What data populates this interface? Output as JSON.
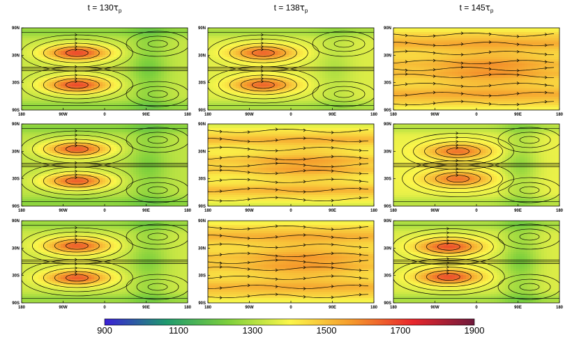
{
  "chart_data": {
    "type": "heatmap",
    "title": "",
    "columns": [
      {
        "t_prefix": "t = ",
        "t_value": "130",
        "t_symbol": "τ",
        "t_sub": "p"
      },
      {
        "t_prefix": "t = ",
        "t_value": "138",
        "t_symbol": "τ",
        "t_sub": "p"
      },
      {
        "t_prefix": "t = ",
        "t_value": "145",
        "t_symbol": "τ",
        "t_sub": "p"
      }
    ],
    "x_ticks": [
      "180",
      "90W",
      "0",
      "90E",
      "180"
    ],
    "x_tick_values": [
      -180,
      -90,
      0,
      90,
      180
    ],
    "y_ticks": [
      "90N",
      "30N",
      "30S",
      "90S"
    ],
    "y_tick_values": [
      90,
      30,
      -30,
      -90
    ],
    "xlim": [
      -180,
      180
    ],
    "ylim": [
      -90,
      90
    ],
    "colorbar": {
      "ticks": [
        "900",
        "1100",
        "1300",
        "1500",
        "1700",
        "1900"
      ],
      "range": [
        900,
        1900
      ],
      "colors": [
        "#3a1fd6",
        "#1f9a6e",
        "#7ccf3c",
        "#fbf64a",
        "#f59a2c",
        "#e8262c",
        "#6e1a3c"
      ]
    },
    "panels": [
      {
        "row": 1,
        "col": 1,
        "pattern": "gyres",
        "background": 1330,
        "gyre_peak": 1680,
        "gyre_center_lon": -60,
        "gyre_center_lat": 35,
        "trough": 1220
      },
      {
        "row": 1,
        "col": 2,
        "pattern": "gyres",
        "background": 1360,
        "gyre_peak": 1640,
        "gyre_center_lon": -60,
        "gyre_center_lat": 35,
        "trough": 1300
      },
      {
        "row": 1,
        "col": 3,
        "pattern": "bands",
        "background": 1480,
        "band_peak": 1540,
        "trough": 1400
      },
      {
        "row": 2,
        "col": 1,
        "pattern": "gyres",
        "background": 1320,
        "gyre_peak": 1650,
        "gyre_center_lon": -60,
        "gyre_center_lat": 35,
        "trough": 1230
      },
      {
        "row": 2,
        "col": 2,
        "pattern": "bands",
        "background": 1440,
        "band_peak": 1520,
        "trough": 1360
      },
      {
        "row": 2,
        "col": 3,
        "pattern": "gyres",
        "background": 1380,
        "gyre_peak": 1620,
        "gyre_center_lon": -40,
        "gyre_center_lat": 30,
        "trough": 1260
      },
      {
        "row": 3,
        "col": 1,
        "pattern": "gyres",
        "background": 1340,
        "gyre_peak": 1650,
        "gyre_center_lon": -60,
        "gyre_center_lat": 35,
        "trough": 1240
      },
      {
        "row": 3,
        "col": 2,
        "pattern": "bands",
        "background": 1470,
        "band_peak": 1530,
        "trough": 1390
      },
      {
        "row": 3,
        "col": 3,
        "pattern": "gyres",
        "background": 1360,
        "gyre_peak": 1670,
        "gyre_center_lon": -60,
        "gyre_center_lat": 33,
        "trough": 1230
      }
    ]
  }
}
